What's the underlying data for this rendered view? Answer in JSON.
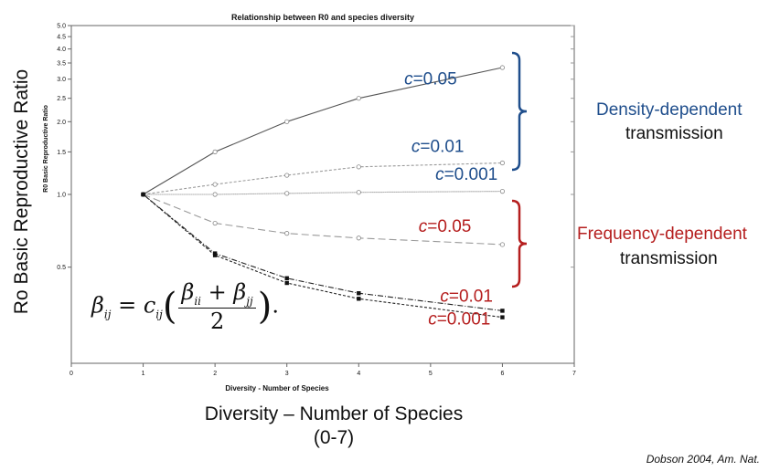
{
  "figure": {
    "ylabel": "Ro Basic Reproductive Ratio",
    "xlabel_line1": "Diversity – Number of Species",
    "xlabel_line2": "(0-7)",
    "citation": "Dobson 2004, Am. Nat.",
    "density_title": "Density-dependent",
    "density_sub": "transmission",
    "frequency_title": "Frequency-dependent",
    "frequency_sub": "transmission",
    "formula": {
      "beta": "β",
      "ij": "ij",
      "eq": "=",
      "c": "c",
      "ii": "ii",
      "plus": "+",
      "jj": "jj",
      "two": "2",
      "dot": "."
    }
  },
  "colors": {
    "blue": "#1f4e8c",
    "red": "#b51e1e",
    "ink": "#111111",
    "line": "#444444"
  },
  "chart_data": {
    "type": "line",
    "title": "Relationship between R0 and species diversity",
    "xlabel": "Diversity - Number of Species",
    "ylabel": "R0 Basic Reproductive Ratio",
    "xlim": [
      0,
      7
    ],
    "ylim": [
      0.2,
      5.0
    ],
    "yscale": "log",
    "xticks": [
      "0",
      "1",
      "2",
      "3",
      "4",
      "5",
      "6",
      "7"
    ],
    "yticks": [
      "5.0",
      "4.5",
      "4.0",
      "3.5",
      "3.0",
      "2.5",
      "2.0",
      "1.5",
      "1.0",
      "0.5"
    ],
    "ytick_values": [
      5.0,
      4.5,
      4.0,
      3.5,
      3.0,
      2.5,
      2.0,
      1.5,
      1.0,
      0.5
    ],
    "x": [
      1,
      2,
      3,
      4,
      6
    ],
    "series": [
      {
        "name": "c=0.05",
        "group": "density",
        "values": [
          1.0,
          1.5,
          2.0,
          2.5,
          3.35
        ]
      },
      {
        "name": "c=0.01",
        "group": "density",
        "values": [
          1.0,
          1.1,
          1.2,
          1.3,
          1.35
        ]
      },
      {
        "name": "c=0.001",
        "group": "density",
        "values": [
          1.0,
          1.0,
          1.01,
          1.02,
          1.03
        ]
      },
      {
        "name": "c=0.05",
        "group": "frequency",
        "values": [
          1.0,
          0.76,
          0.69,
          0.66,
          0.62
        ]
      },
      {
        "name": "c=0.01",
        "group": "frequency",
        "values": [
          1.0,
          0.57,
          0.45,
          0.39,
          0.33
        ]
      },
      {
        "name": "c=0.001",
        "group": "frequency",
        "values": [
          1.0,
          0.56,
          0.43,
          0.37,
          0.31
        ]
      }
    ]
  }
}
